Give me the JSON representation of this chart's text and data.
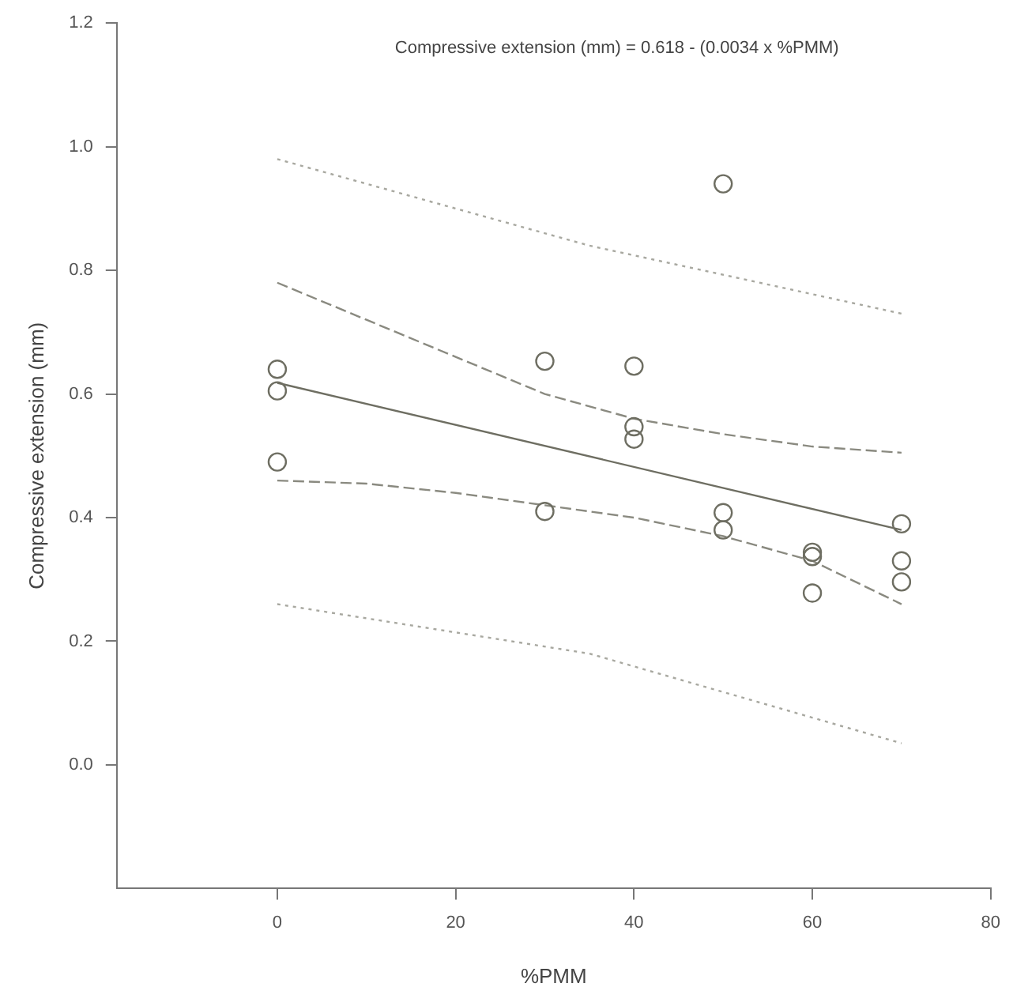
{
  "chart_data": {
    "type": "scatter",
    "xlabel": "%PMM",
    "ylabel": "Compressive extension (mm)",
    "annotations": [
      "Compressive extension (mm) = 0.618 - (0.0034 x %PMM)"
    ],
    "xlim": [
      -18,
      80
    ],
    "xticks": [
      0,
      20,
      40,
      60,
      80
    ],
    "ylim": [
      -0.2,
      1.2
    ],
    "yticks": [
      {
        "value": 0,
        "label": "0.0"
      },
      {
        "value": 0.2,
        "label": "0.2"
      },
      {
        "value": 0.4,
        "label": "0.4"
      },
      {
        "value": 0.6,
        "label": "0.6"
      },
      {
        "value": 0.8,
        "label": "0.8"
      },
      {
        "value": 1,
        "label": "1.0"
      },
      {
        "value": 1.2,
        "label": "1.2"
      }
    ],
    "grid": false,
    "legend": false,
    "marker": "circle",
    "series": [
      {
        "type": "scatter",
        "color": "#6e6e62",
        "x": [
          0,
          0,
          0,
          30,
          30,
          40,
          40,
          40,
          50,
          50,
          50,
          60,
          60,
          60,
          70,
          70,
          70
        ],
        "values": [
          0.64,
          0.605,
          0.49,
          0.653,
          0.41,
          0.645,
          0.547,
          0.527,
          0.94,
          0.408,
          0.38,
          0.344,
          0.337,
          0.278,
          0.39,
          0.33,
          0.296
        ]
      },
      {
        "type": "line",
        "color": "#6e6e62",
        "marker": "none",
        "line_style": "solid",
        "x": [
          0,
          70
        ],
        "values": [
          0.618,
          0.38
        ]
      },
      {
        "type": "line",
        "color": "#8a8a80",
        "marker": "none",
        "line_style": "dashed",
        "x": [
          0,
          10,
          20,
          30,
          40,
          50,
          60,
          70
        ],
        "values": [
          0.78,
          0.72,
          0.66,
          0.6,
          0.56,
          0.535,
          0.515,
          0.505
        ]
      },
      {
        "type": "line",
        "color": "#8a8a80",
        "marker": "none",
        "line_style": "dashed",
        "x": [
          0,
          10,
          20,
          30,
          40,
          50,
          60,
          70
        ],
        "values": [
          0.46,
          0.455,
          0.44,
          0.42,
          0.4,
          0.37,
          0.33,
          0.26
        ]
      },
      {
        "type": "line",
        "color": "#a8a8a0",
        "marker": "none",
        "line_style": "dotted",
        "x": [
          0,
          35,
          70
        ],
        "values": [
          0.98,
          0.84,
          0.73
        ]
      },
      {
        "type": "line",
        "color": "#a8a8a0",
        "marker": "none",
        "line_style": "dotted",
        "x": [
          0,
          35,
          70
        ],
        "values": [
          0.26,
          0.18,
          0.035
        ]
      }
    ]
  }
}
